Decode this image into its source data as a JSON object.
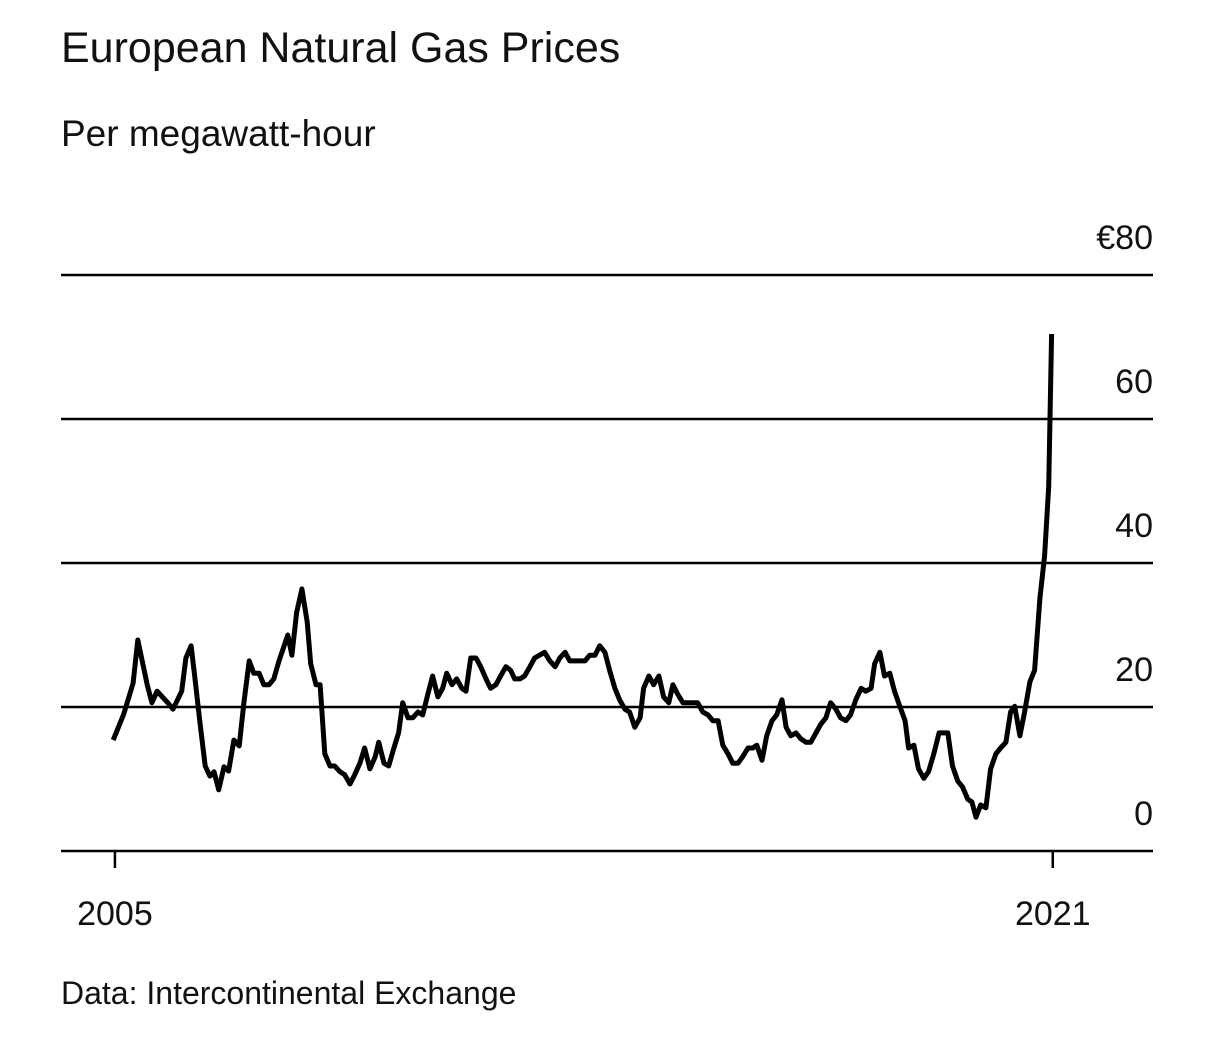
{
  "chart_data": {
    "type": "line",
    "title": "European Natural Gas Prices",
    "subtitle": "Per megawatt-hour",
    "source": "Data: Intercontinental Exchange",
    "color": "#000000",
    "grid": true,
    "xlim": [
      2004.08,
      2022.71
    ],
    "xticks": [
      2005,
      2021
    ],
    "ylim": [
      0,
      80
    ],
    "yticks": [
      0,
      20,
      40,
      60,
      {
        "value": 80,
        "label": "€80"
      }
    ],
    "x": [
      2004.97,
      2005.15,
      2005.31,
      2005.39,
      2005.55,
      2005.63,
      2005.72,
      2005.9,
      2005.99,
      2006.14,
      2006.21,
      2006.3,
      2006.36,
      2006.45,
      2006.54,
      2006.62,
      2006.69,
      2006.77,
      2006.86,
      2006.94,
      2007.03,
      2007.12,
      2007.2,
      2007.29,
      2007.37,
      2007.46,
      2007.54,
      2007.63,
      2007.71,
      2007.8,
      2007.95,
      2008.02,
      2008.1,
      2008.19,
      2008.28,
      2008.34,
      2008.43,
      2008.5,
      2008.58,
      2008.67,
      2008.75,
      2008.84,
      2008.92,
      2009.01,
      2009.09,
      2009.18,
      2009.26,
      2009.35,
      2009.44,
      2009.5,
      2009.59,
      2009.67,
      2009.76,
      2009.84,
      2009.91,
      2010.0,
      2010.08,
      2010.17,
      2010.25,
      2010.34,
      2010.42,
      2010.51,
      2010.59,
      2010.66,
      2010.75,
      2010.83,
      2010.92,
      2010.99,
      2011.07,
      2011.16,
      2011.24,
      2011.33,
      2011.41,
      2011.5,
      2011.58,
      2011.67,
      2011.75,
      2011.82,
      2011.91,
      2011.99,
      2012.08,
      2012.16,
      2012.33,
      2012.42,
      2012.51,
      2012.59,
      2012.68,
      2012.76,
      2013.02,
      2013.1,
      2013.19,
      2013.27,
      2013.36,
      2013.44,
      2013.53,
      2013.61,
      2013.7,
      2013.78,
      2013.87,
      2013.96,
      2014.02,
      2014.11,
      2014.19,
      2014.28,
      2014.36,
      2014.45,
      2014.52,
      2014.6,
      2014.69,
      2014.94,
      2015.03,
      2015.12,
      2015.2,
      2015.29,
      2015.37,
      2015.46,
      2015.54,
      2015.63,
      2015.71,
      2015.8,
      2015.88,
      2015.95,
      2016.04,
      2016.12,
      2016.21,
      2016.29,
      2016.38,
      2016.45,
      2016.53,
      2016.62,
      2016.7,
      2016.79,
      2016.87,
      2016.96,
      2017.04,
      2017.13,
      2017.21,
      2017.3,
      2017.38,
      2017.47,
      2017.55,
      2017.64,
      2017.73,
      2017.81,
      2017.9,
      2017.96,
      2018.05,
      2018.13,
      2018.22,
      2018.3,
      2018.39,
      2018.48,
      2018.54,
      2018.63,
      2018.71,
      2018.8,
      2018.88,
      2018.97,
      2019.06,
      2019.21,
      2019.29,
      2019.38,
      2019.46,
      2019.55,
      2019.62,
      2019.69,
      2019.77,
      2019.86,
      2019.94,
      2020.03,
      2020.11,
      2020.2,
      2020.28,
      2020.35,
      2020.44,
      2020.52,
      2020.61,
      2020.69,
      2020.78,
      2020.86,
      2020.93,
      2020.98
    ],
    "values": [
      15.4,
      19.0,
      23.3,
      29.3,
      23.1,
      20.6,
      22.2,
      20.6,
      19.7,
      22.2,
      26.8,
      28.5,
      24.4,
      17.9,
      11.8,
      10.4,
      11.0,
      8.5,
      11.7,
      11.1,
      15.4,
      14.6,
      20.6,
      26.4,
      24.7,
      24.7,
      23.1,
      23.1,
      23.9,
      26.4,
      30.0,
      27.2,
      33.1,
      36.4,
      31.8,
      26.0,
      23.1,
      23.1,
      13.5,
      11.8,
      11.8,
      11.0,
      10.6,
      9.3,
      10.6,
      12.2,
      14.3,
      11.4,
      13.1,
      15.1,
      12.2,
      11.8,
      14.3,
      16.4,
      20.6,
      18.5,
      18.5,
      19.3,
      18.9,
      21.8,
      24.3,
      21.4,
      22.6,
      24.7,
      23.1,
      23.9,
      22.6,
      22.2,
      26.8,
      26.8,
      25.6,
      23.9,
      22.6,
      23.1,
      24.3,
      25.6,
      25.1,
      23.9,
      23.9,
      24.3,
      25.6,
      26.8,
      27.6,
      26.4,
      25.6,
      26.8,
      27.6,
      26.4,
      26.4,
      27.2,
      27.2,
      28.5,
      27.6,
      25.1,
      22.6,
      21.0,
      19.7,
      19.3,
      17.2,
      18.5,
      22.6,
      24.3,
      23.1,
      24.3,
      21.4,
      20.6,
      23.1,
      21.8,
      20.6,
      20.6,
      19.3,
      18.9,
      18.1,
      18.1,
      14.7,
      13.5,
      12.2,
      12.2,
      13.1,
      14.3,
      14.3,
      14.7,
      12.6,
      16.0,
      18.1,
      18.9,
      21.0,
      17.2,
      16.0,
      16.4,
      15.6,
      15.1,
      15.1,
      16.4,
      17.6,
      18.5,
      20.6,
      19.7,
      18.5,
      18.1,
      18.9,
      21.0,
      22.6,
      22.2,
      22.6,
      26.0,
      27.6,
      24.3,
      24.7,
      22.2,
      20.1,
      18.1,
      14.3,
      14.7,
      11.4,
      10.1,
      11.0,
      13.5,
      16.4,
      16.4,
      11.8,
      9.7,
      8.9,
      7.2,
      6.8,
      4.7,
      6.4,
      6.0,
      11.4,
      13.5,
      14.3,
      15.1,
      19.3,
      20.1,
      16.0,
      19.3,
      23.5,
      25.1,
      35.1,
      41.0,
      50.6,
      71.8
    ]
  }
}
